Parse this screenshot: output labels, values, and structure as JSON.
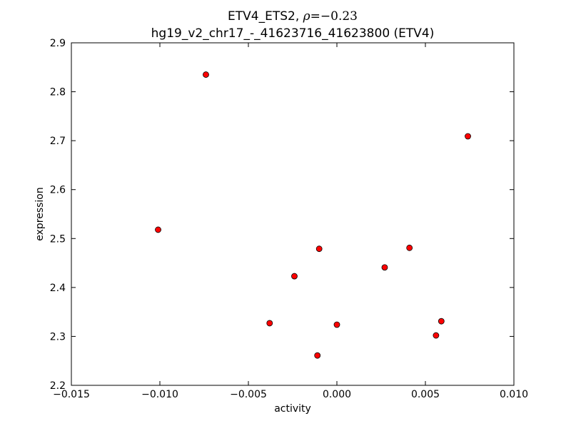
{
  "chart_data": {
    "type": "scatter",
    "title_prefix": "ETV4_ETS2, ",
    "title_rho_symbol": "ρ",
    "title_rho_value": "=−0.23",
    "subtitle": "hg19_v2_chr17_-_41623716_41623800 (ETV4)",
    "xlabel": "activity",
    "ylabel": "expression",
    "xlim": [
      -0.015,
      0.01
    ],
    "ylim": [
      2.2,
      2.9
    ],
    "xticks": [
      -0.015,
      -0.01,
      -0.005,
      0.0,
      0.005,
      0.01
    ],
    "xtick_labels": [
      "−0.015",
      "−0.010",
      "−0.005",
      "0.000",
      "0.005",
      "0.010"
    ],
    "yticks": [
      2.2,
      2.3,
      2.4,
      2.5,
      2.6,
      2.7,
      2.8,
      2.9
    ],
    "ytick_labels": [
      "2.2",
      "2.3",
      "2.4",
      "2.5",
      "2.6",
      "2.7",
      "2.8",
      "2.9"
    ],
    "grid": false,
    "marker_color": "#ff0000",
    "marker_edge_color": "#000000",
    "points": [
      {
        "x": -0.0101,
        "y": 2.518
      },
      {
        "x": -0.0074,
        "y": 2.835
      },
      {
        "x": -0.0038,
        "y": 2.327
      },
      {
        "x": -0.0024,
        "y": 2.423
      },
      {
        "x": -0.001,
        "y": 2.479
      },
      {
        "x": -0.0011,
        "y": 2.261
      },
      {
        "x": 0.0,
        "y": 2.324
      },
      {
        "x": 0.0027,
        "y": 2.441
      },
      {
        "x": 0.0041,
        "y": 2.481
      },
      {
        "x": 0.0056,
        "y": 2.302
      },
      {
        "x": 0.0059,
        "y": 2.331
      },
      {
        "x": 0.0074,
        "y": 2.709
      }
    ]
  }
}
